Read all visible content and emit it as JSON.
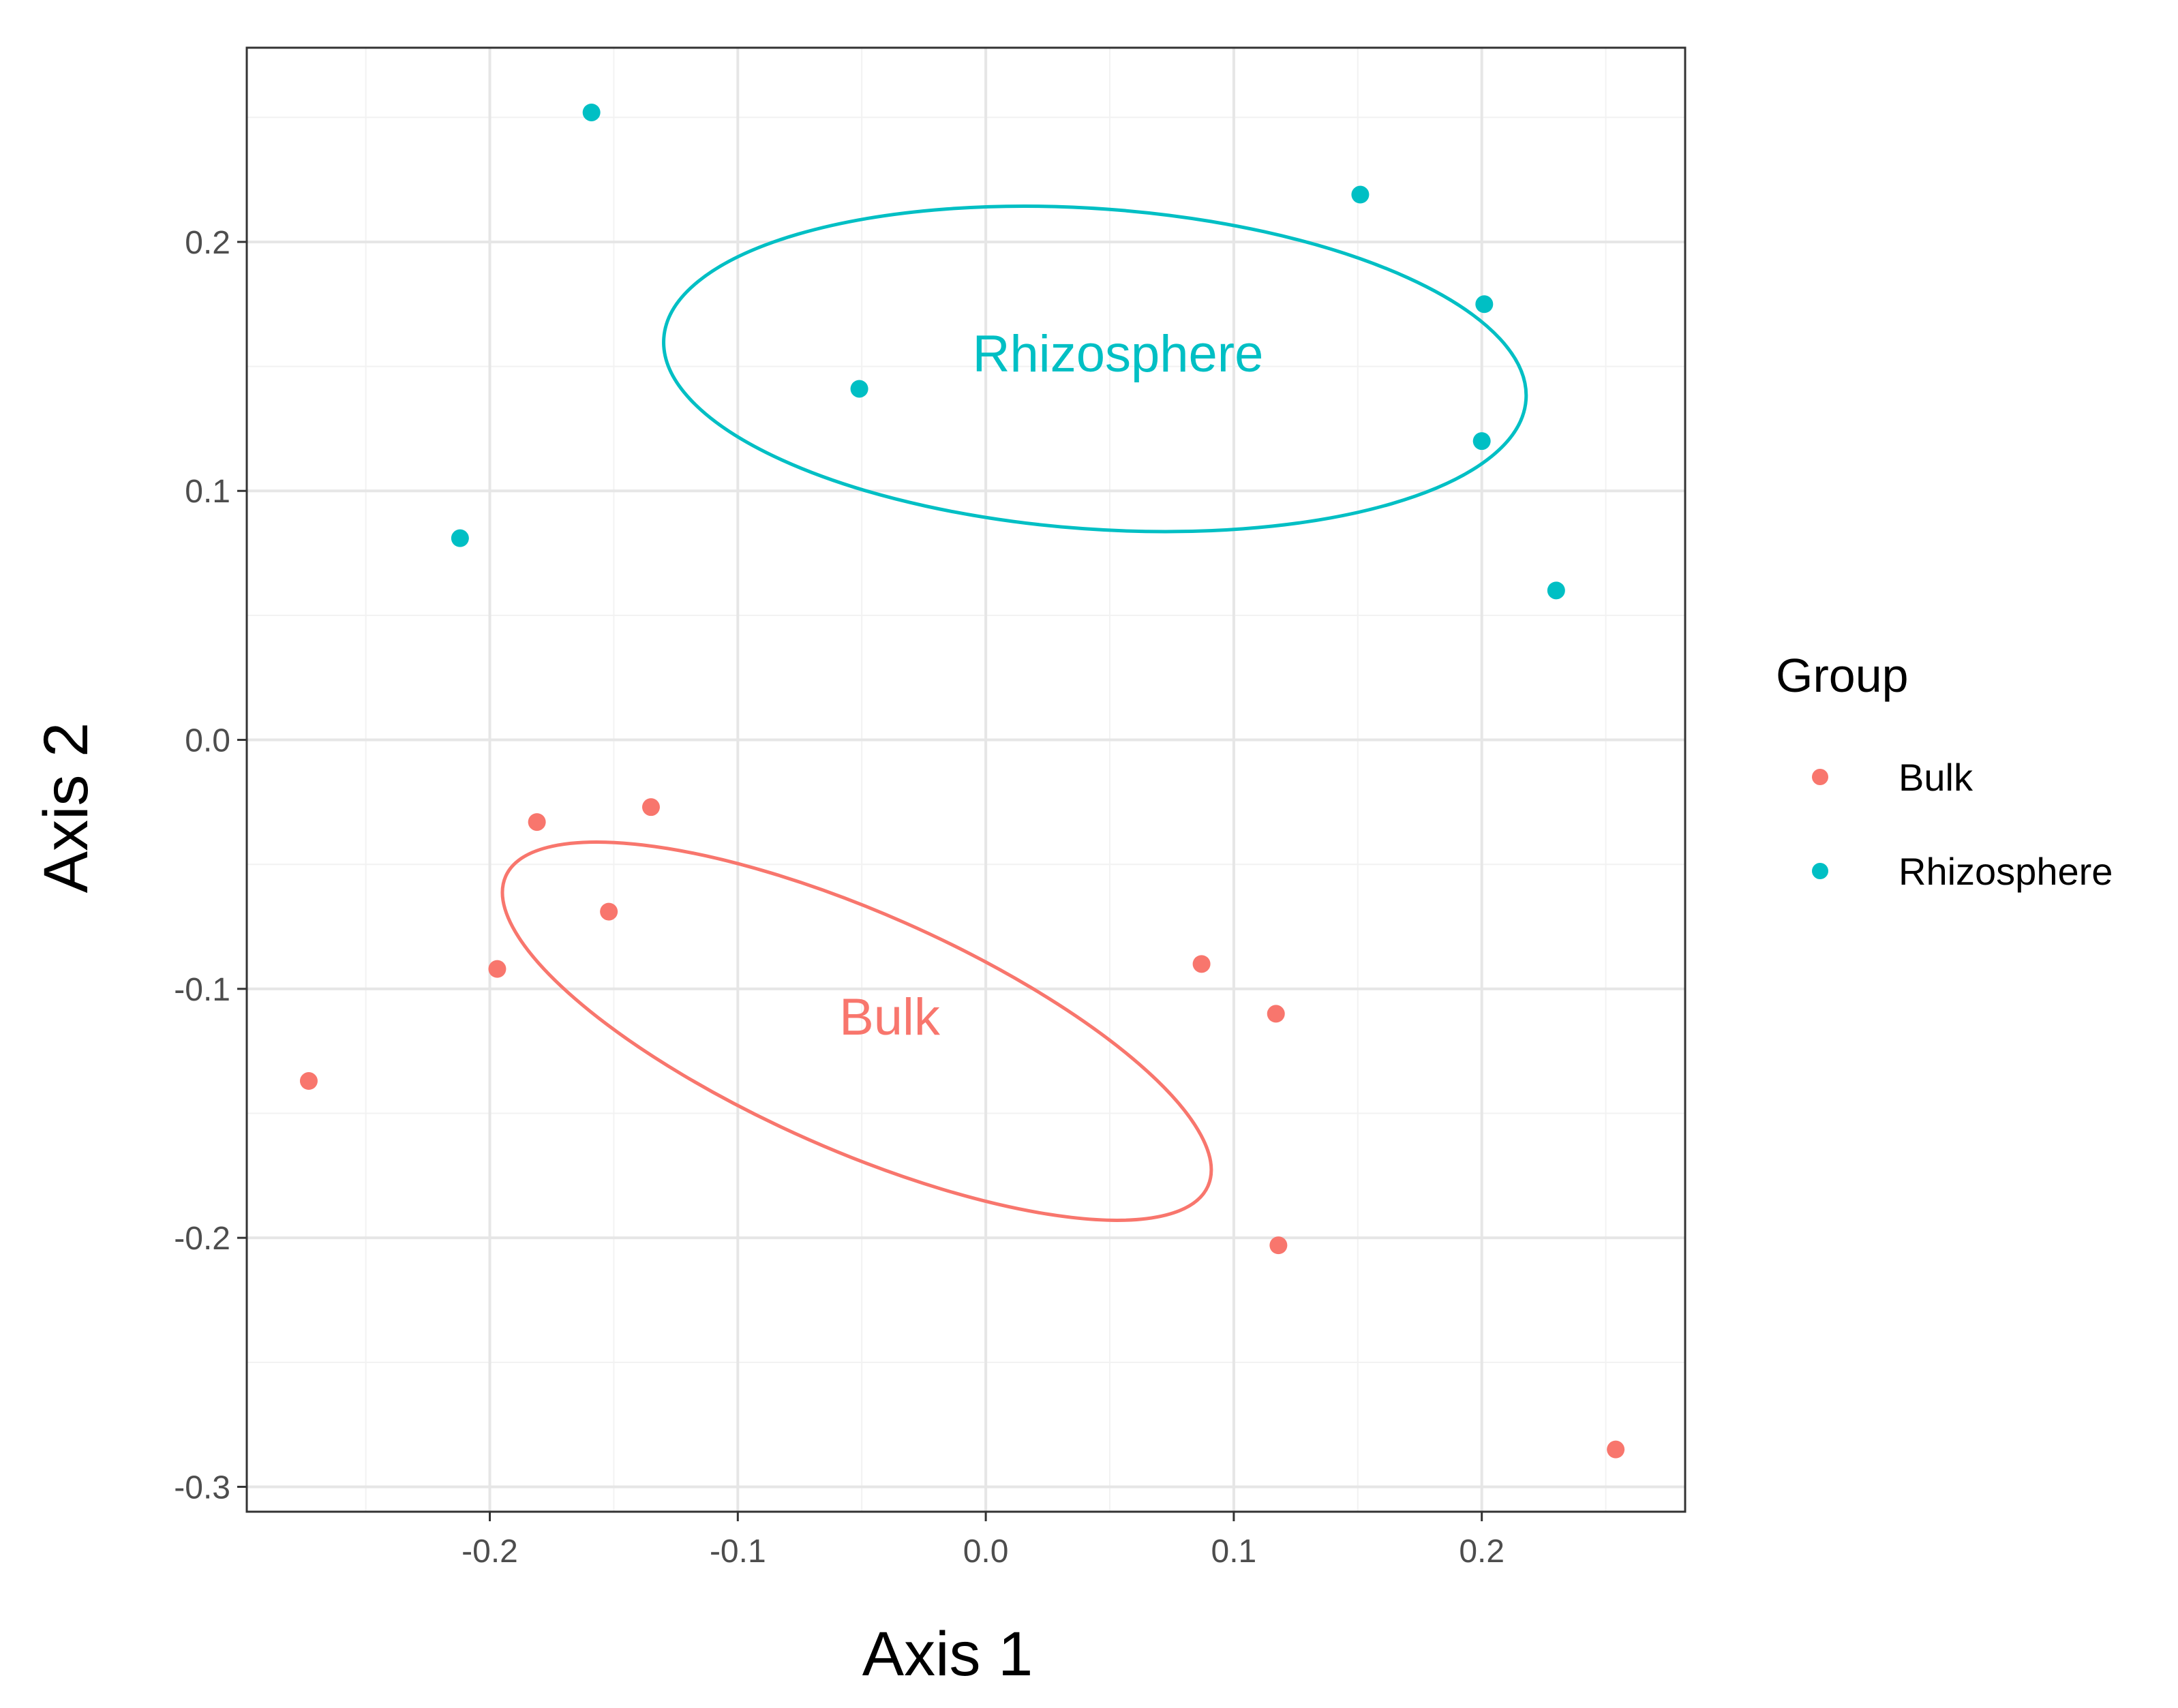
{
  "chart_data": {
    "type": "scatter",
    "title": "",
    "xlabel": "Axis 1",
    "ylabel": "Axis 2",
    "xlim": [
      -0.298,
      0.282
    ],
    "ylim": [
      -0.31,
      0.278
    ],
    "x_ticks": [
      -0.2,
      -0.1,
      0.0,
      0.1,
      0.2
    ],
    "x_tick_labels": [
      "-0.2",
      "-0.1",
      "0.0",
      "0.1",
      "0.2"
    ],
    "y_ticks": [
      -0.3,
      -0.2,
      -0.1,
      0.0,
      0.1,
      0.2
    ],
    "y_tick_labels": [
      "-0.3",
      "-0.2",
      "-0.1",
      "0.0",
      "0.1",
      "0.2"
    ],
    "grid": true,
    "legend": {
      "title": "Group",
      "placement": "right",
      "entries": [
        "Bulk",
        "Rhizosphere"
      ]
    },
    "series": [
      {
        "name": "Bulk",
        "color": "#F8766D",
        "points": [
          {
            "x": -0.273,
            "y": -0.137
          },
          {
            "x": -0.197,
            "y": -0.092
          },
          {
            "x": -0.181,
            "y": -0.033
          },
          {
            "x": -0.152,
            "y": -0.069
          },
          {
            "x": -0.135,
            "y": -0.027
          },
          {
            "x": 0.087,
            "y": -0.09
          },
          {
            "x": 0.117,
            "y": -0.11
          },
          {
            "x": 0.118,
            "y": -0.203
          },
          {
            "x": 0.254,
            "y": -0.285
          }
        ],
        "ellipse": {
          "center_x": -0.052,
          "center_y": -0.117,
          "label": "Bulk"
        }
      },
      {
        "name": "Rhizosphere",
        "color": "#00BFC4",
        "points": [
          {
            "x": -0.212,
            "y": 0.081
          },
          {
            "x": -0.159,
            "y": 0.252
          },
          {
            "x": -0.051,
            "y": 0.141
          },
          {
            "x": 0.151,
            "y": 0.219
          },
          {
            "x": 0.2,
            "y": 0.12
          },
          {
            "x": 0.201,
            "y": 0.175
          },
          {
            "x": 0.23,
            "y": 0.06
          }
        ],
        "ellipse": {
          "center_x": 0.044,
          "center_y": 0.149,
          "label": "Rhizosphere"
        }
      }
    ]
  }
}
